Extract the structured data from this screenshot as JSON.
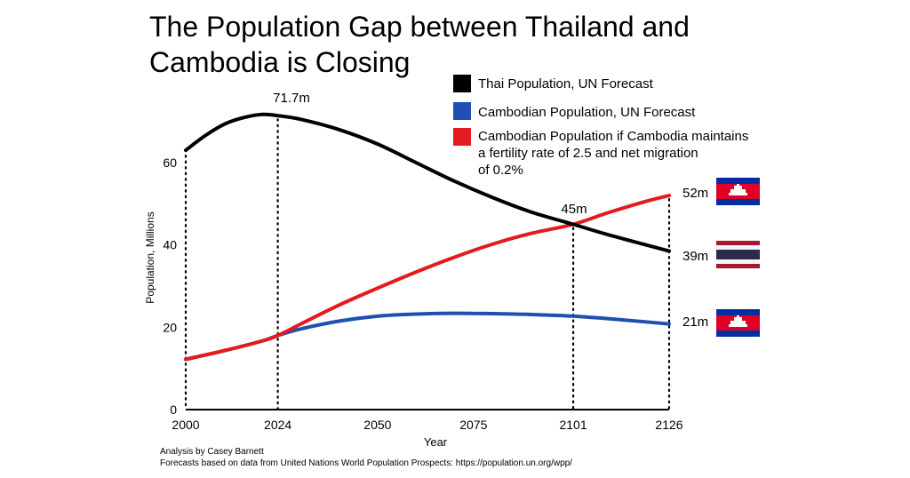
{
  "title": "The Population Gap between Thailand and Cambodia is Closing",
  "chart_data": {
    "type": "line",
    "xlabel": "Year",
    "ylabel": "Population, Millions",
    "xlim": [
      2000,
      2126
    ],
    "ylim": [
      0,
      66
    ],
    "xticks": [
      "2000",
      "2024",
      "2050",
      "2075",
      "2101",
      "2126"
    ],
    "yticks": [
      "0",
      "20",
      "40",
      "60"
    ],
    "series": [
      {
        "name": "Thai Population, UN Forecast",
        "color": "#000000",
        "x": [
          2000,
          2005,
          2010,
          2015,
          2020,
          2024,
          2030,
          2040,
          2050,
          2060,
          2070,
          2080,
          2090,
          2101,
          2110,
          2120,
          2126
        ],
        "y": [
          63.0,
          66.5,
          69.3,
          70.9,
          71.7,
          71.4,
          70.5,
          68.0,
          64.5,
          60.0,
          55.5,
          51.5,
          48.0,
          45.0,
          42.5,
          40.0,
          38.5
        ]
      },
      {
        "name": "Cambodian Population, UN Forecast",
        "color": "#1f4fb0",
        "x": [
          2000,
          2010,
          2020,
          2024,
          2030,
          2040,
          2050,
          2060,
          2070,
          2080,
          2090,
          2101,
          2110,
          2120,
          2126
        ],
        "y": [
          12.2,
          14.3,
          16.7,
          18.0,
          19.6,
          21.5,
          22.7,
          23.2,
          23.4,
          23.3,
          23.1,
          22.7,
          22.1,
          21.3,
          20.8
        ]
      },
      {
        "name": "Cambodian Population if Cambodia maintains a fertility rate of 2.5 and net migration of 0.2%",
        "color": "#e41a1c",
        "x": [
          2000,
          2010,
          2020,
          2024,
          2030,
          2040,
          2050,
          2060,
          2070,
          2080,
          2090,
          2101,
          2110,
          2120,
          2126
        ],
        "y": [
          12.2,
          14.3,
          16.7,
          18.0,
          20.8,
          25.4,
          29.5,
          33.4,
          37.0,
          40.2,
          42.8,
          45.0,
          47.8,
          50.6,
          52.0
        ]
      }
    ],
    "legend_position": "top-right",
    "annotations": {
      "peak_label": "71.7m",
      "cross_label": "45m",
      "end_labels": [
        "52m",
        "39m",
        "21m"
      ]
    },
    "vertical_markers_x": [
      2000,
      2024,
      2101,
      2126
    ],
    "grid": false
  },
  "flags": [
    "cambodia-flag",
    "thailand-flag",
    "cambodia-flag"
  ],
  "footer": {
    "line1": "Analysis by Casey Barnett",
    "line2": "Forecasts based on data from United Nations World Population Prospects: https://population.un.org/wpp/"
  }
}
